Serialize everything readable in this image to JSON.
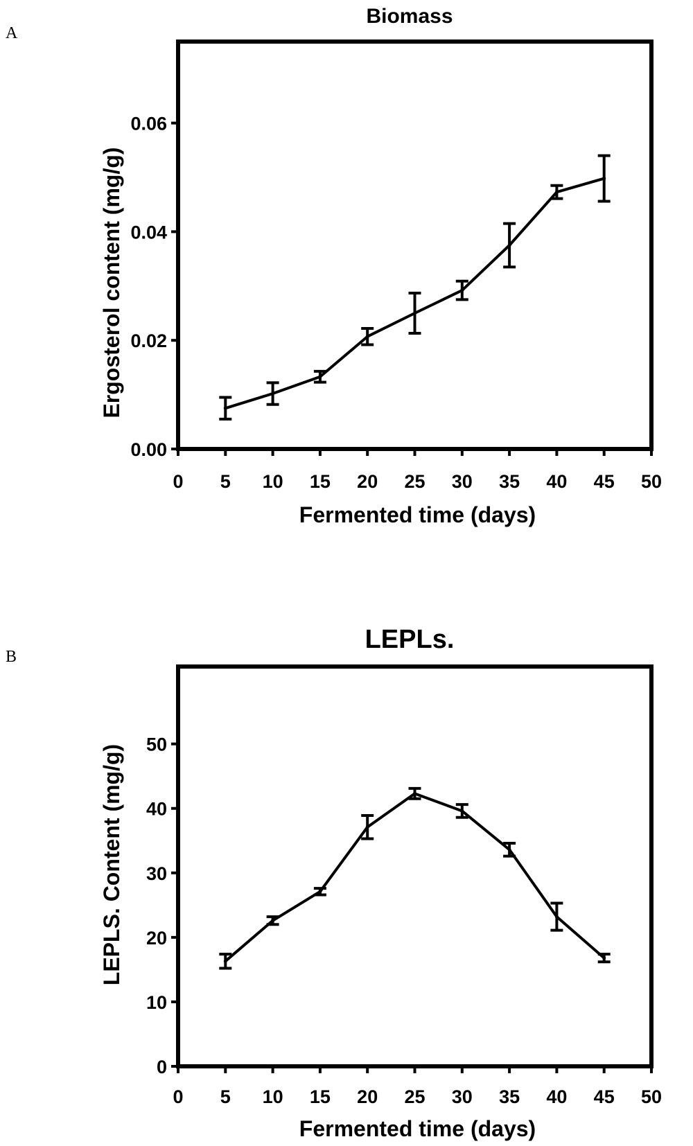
{
  "chart_data": [
    {
      "panel_label": "A",
      "type": "line",
      "title": "Biomass",
      "xlabel": "Fermented time (days)",
      "ylabel": "Ergosterol content (mg/g)",
      "xlim": [
        0,
        50
      ],
      "ylim": [
        0,
        0.075
      ],
      "xticks": [
        0,
        5,
        10,
        15,
        20,
        25,
        30,
        35,
        40,
        45,
        50
      ],
      "yticks": [
        0,
        0.02,
        0.04,
        0.06
      ],
      "ytick_labels": [
        "0.00",
        "0.02",
        "0.04",
        "0.06"
      ],
      "grid": false,
      "x": [
        5,
        10,
        15,
        20,
        25,
        30,
        35,
        40,
        45
      ],
      "values": [
        0.0075,
        0.0102,
        0.0133,
        0.0207,
        0.025,
        0.0292,
        0.0375,
        0.0473,
        0.0498
      ],
      "errors": [
        0.002,
        0.002,
        0.001,
        0.0015,
        0.0037,
        0.0017,
        0.004,
        0.0012,
        0.0042
      ]
    },
    {
      "panel_label": "B",
      "type": "line",
      "title": "LEPLs.",
      "xlabel": "Fermented time (days)",
      "ylabel": "LEPLS. Content (mg/g)",
      "xlim": [
        0,
        50
      ],
      "ylim": [
        0,
        62
      ],
      "xticks": [
        0,
        5,
        10,
        15,
        20,
        25,
        30,
        35,
        40,
        45,
        50
      ],
      "yticks": [
        0,
        10,
        20,
        30,
        40,
        50
      ],
      "ytick_labels": [
        "0",
        "10",
        "20",
        "30",
        "40",
        "50"
      ],
      "grid": false,
      "x": [
        5,
        10,
        15,
        20,
        25,
        30,
        35,
        40,
        45
      ],
      "values": [
        16.3,
        22.6,
        27.1,
        37.1,
        42.3,
        39.6,
        33.6,
        23.2,
        16.8
      ],
      "errors": [
        1.1,
        0.6,
        0.5,
        1.8,
        0.8,
        1.0,
        1.0,
        2.1,
        0.6
      ]
    }
  ]
}
